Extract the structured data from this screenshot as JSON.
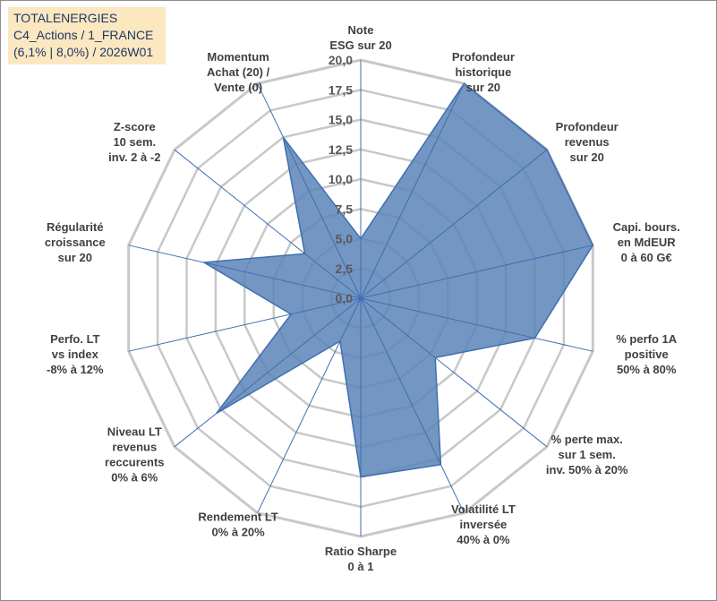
{
  "title_box": {
    "line1": "TOTALENERGIES",
    "line2": "C4_Actions / 1_FRANCE",
    "line3": "(6,1% | 8,0%) / 2026W01"
  },
  "chart_data": {
    "type": "radar",
    "title": "TOTALENERGIES C4_Actions / 1_FRANCE (6,1% | 8,0%) / 2026W01",
    "range": [
      0,
      20
    ],
    "tick_values": [
      0,
      2.5,
      5,
      7.5,
      10,
      12.5,
      15,
      17.5,
      20
    ],
    "tick_labels": [
      "0,0",
      "2,5",
      "5,0",
      "7,5",
      "10,0",
      "12,5",
      "15,0",
      "17,5",
      "20,0"
    ],
    "axes": [
      {
        "label": [
          "Note",
          "ESG sur 20"
        ],
        "value": 5
      },
      {
        "label": [
          "Profondeur",
          "historique",
          "sur 20"
        ],
        "value": 20
      },
      {
        "label": [
          "Profondeur",
          "revenus",
          "sur 20"
        ],
        "value": 20
      },
      {
        "label": [
          "Capi. bours.",
          "en MdEUR",
          "0 à 60 G€"
        ],
        "value": 20
      },
      {
        "label": [
          "% perfo 1A",
          "positive",
          "50% à 80%"
        ],
        "value": 15
      },
      {
        "label": [
          "% perte max.",
          "sur 1 sem.",
          "inv. 50% à 20%"
        ],
        "value": 8
      },
      {
        "label": [
          "Volatilité LT",
          "inversée",
          "40% à 0%"
        ],
        "value": 15.5
      },
      {
        "label": [
          "Ratio Sharpe",
          "0 à 1"
        ],
        "value": 15
      },
      {
        "label": [
          "Rendement LT",
          "0% à 20%"
        ],
        "value": 4
      },
      {
        "label": [
          "Niveau LT",
          "revenus",
          "reccurents",
          "0% à 6%"
        ],
        "value": 15.5
      },
      {
        "label": [
          "Perfo. LT",
          "vs index",
          "-8% à 12%"
        ],
        "value": 6
      },
      {
        "label": [
          "Régularité",
          "croissance",
          "sur 20"
        ],
        "value": 13.5
      },
      {
        "label": [
          "Z-score",
          "10 sem.",
          "inv. 2 à -2"
        ],
        "value": 6
      },
      {
        "label": [
          "Momentum",
          "Achat (20) /",
          "Vente (0)"
        ],
        "value": 15
      }
    ],
    "series": [
      {
        "name": "TOTALENERGIES",
        "color": "#5b84b8",
        "outline": "#3f6fb0"
      }
    ],
    "grid_color": "#c8c8c8",
    "spoke_color": "#3f6fb0"
  }
}
